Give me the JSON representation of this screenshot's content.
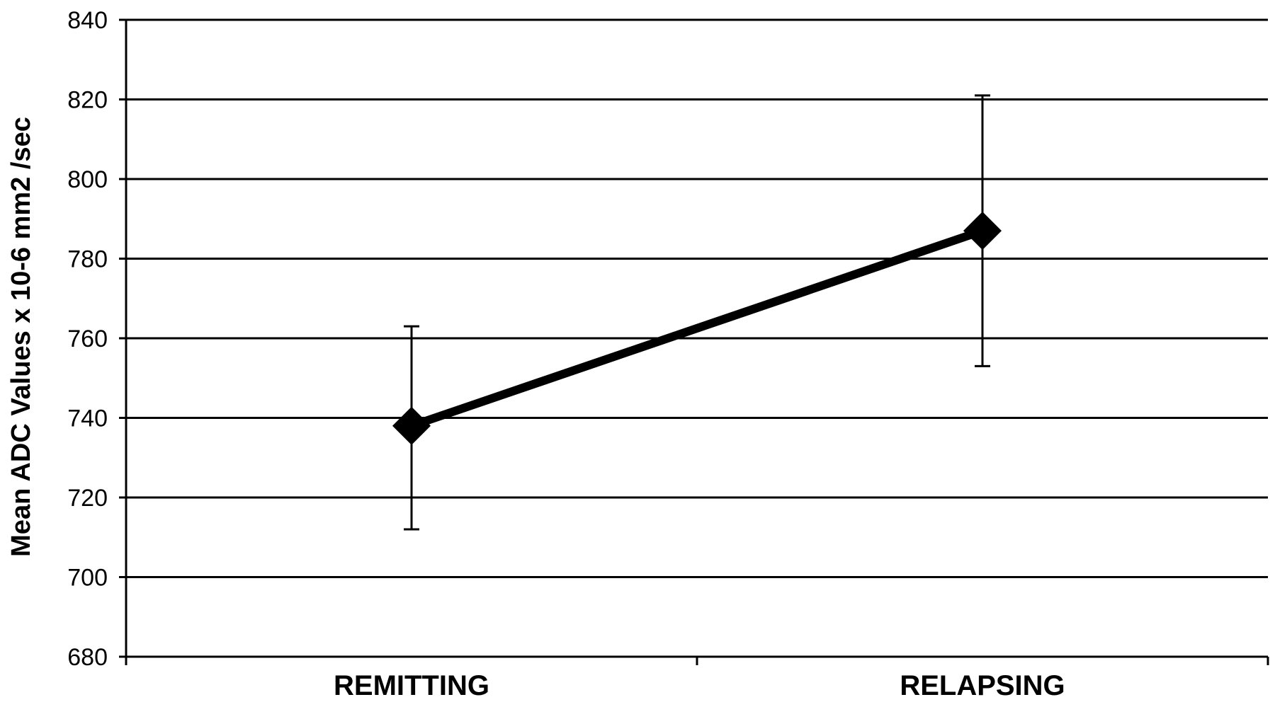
{
  "chart_data": {
    "type": "line",
    "title": "",
    "xlabel": "",
    "ylabel": "Mean ADC Values x 10-6 mm2 /sec",
    "categories": [
      "REMITTING",
      "RELAPSING"
    ],
    "series": [
      {
        "values": [
          738,
          787
        ],
        "error_low": [
          712,
          753
        ],
        "error_high": [
          763,
          821
        ],
        "marker": "diamond",
        "color": "#000000"
      }
    ],
    "ylim": [
      680,
      840
    ],
    "yticks": [
      680,
      700,
      720,
      740,
      760,
      780,
      800,
      820,
      840
    ],
    "grid": true,
    "legend": "none"
  }
}
